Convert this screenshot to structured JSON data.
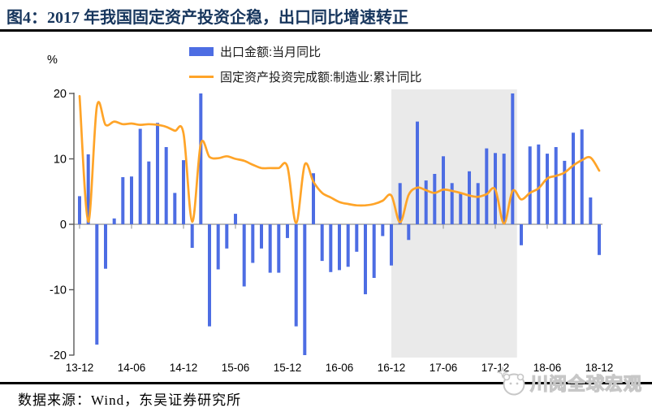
{
  "figure": {
    "title": "图4：2017 年我国固定资产投资企稳，出口同比增速转正",
    "source": "数据来源：Wind，东吴证券研究所",
    "watermark": "川阅全球宏观"
  },
  "legend": [
    {
      "type": "bar",
      "color": "#4d6de3",
      "label": "出口金额:当月同比"
    },
    {
      "type": "line",
      "color": "#ffa428",
      "label": "固定资产投资完成额:制造业:累计同比"
    }
  ],
  "chart_data": {
    "type": "bar+line",
    "unit_label": "%",
    "ylim": [
      -20,
      20
    ],
    "yticks": [
      20,
      10,
      0,
      -10,
      -20
    ],
    "grid": false,
    "legend_position": "top-center",
    "xtick_labels": [
      "13-12",
      "14-06",
      "14-12",
      "15-06",
      "15-12",
      "16-06",
      "16-12",
      "17-06",
      "17-12",
      "18-06",
      "18-12"
    ],
    "x": [
      "13-12",
      "14-01",
      "14-02",
      "14-03",
      "14-04",
      "14-05",
      "14-06",
      "14-07",
      "14-08",
      "14-09",
      "14-10",
      "14-11",
      "14-12",
      "15-01",
      "15-02",
      "15-03",
      "15-04",
      "15-05",
      "15-06",
      "15-07",
      "15-08",
      "15-09",
      "15-10",
      "15-11",
      "15-12",
      "16-01",
      "16-02",
      "16-03",
      "16-04",
      "16-05",
      "16-06",
      "16-07",
      "16-08",
      "16-09",
      "16-10",
      "16-11",
      "16-12",
      "17-01",
      "17-02",
      "17-03",
      "17-04",
      "17-05",
      "17-06",
      "17-07",
      "17-08",
      "17-09",
      "17-10",
      "17-11",
      "17-12",
      "18-01",
      "18-02",
      "18-03",
      "18-04",
      "18-05",
      "18-06",
      "18-07",
      "18-08",
      "18-09",
      "18-10",
      "18-11",
      "18-12"
    ],
    "series": [
      {
        "name": "出口金额:当月同比",
        "type": "bar",
        "color": "#4d6de3",
        "values": [
          4.3,
          10.7,
          -18.4,
          -6.8,
          0.9,
          7.2,
          7.3,
          14.6,
          9.6,
          15.5,
          11.8,
          4.8,
          9.8,
          -3.6,
          20,
          -15.6,
          -6.9,
          -3.7,
          1.6,
          -9.5,
          -5.9,
          -3.7,
          -7.4,
          -7.4,
          -2.1,
          -15.6,
          -20,
          7.8,
          -5.6,
          -7.3,
          -7.0,
          -6.5,
          -4.2,
          -10.7,
          -8.2,
          -1.8,
          -6.3,
          6.3,
          -2.4,
          15.7,
          6.7,
          7.7,
          10.4,
          6.3,
          4.9,
          8.1,
          6.3,
          11.6,
          10.9,
          10.8,
          20,
          -3.2,
          11.9,
          12.2,
          10.8,
          11.8,
          9.7,
          14.0,
          14.5,
          4.1,
          -4.7
        ]
      },
      {
        "name": "固定资产投资完成额:制造业:累计同比",
        "type": "line",
        "color": "#ffa428",
        "values": [
          19.6,
          0.4,
          18.0,
          15.2,
          15.7,
          15.3,
          15.4,
          15.2,
          15.3,
          15.2,
          14.9,
          14.3,
          13.9,
          0.4,
          12.3,
          10.3,
          10.1,
          10.4,
          10.0,
          9.7,
          9.1,
          8.6,
          8.6,
          8.6,
          8.8,
          0.2,
          9.1,
          6.5,
          4.8,
          4.1,
          3.4,
          3.1,
          2.9,
          2.9,
          3.1,
          3.6,
          4.4,
          0.3,
          4.5,
          5.6,
          5.2,
          4.8,
          5.3,
          5.1,
          4.8,
          4.4,
          4.2,
          4.6,
          5.3,
          0.1,
          5.1,
          3.8,
          4.8,
          5.5,
          7.0,
          7.4,
          7.9,
          9.0,
          9.8,
          10.2,
          8.2
        ]
      }
    ],
    "shaded_region": {
      "from": "16-12",
      "to": "18-02",
      "color": "#eaeaea"
    }
  }
}
